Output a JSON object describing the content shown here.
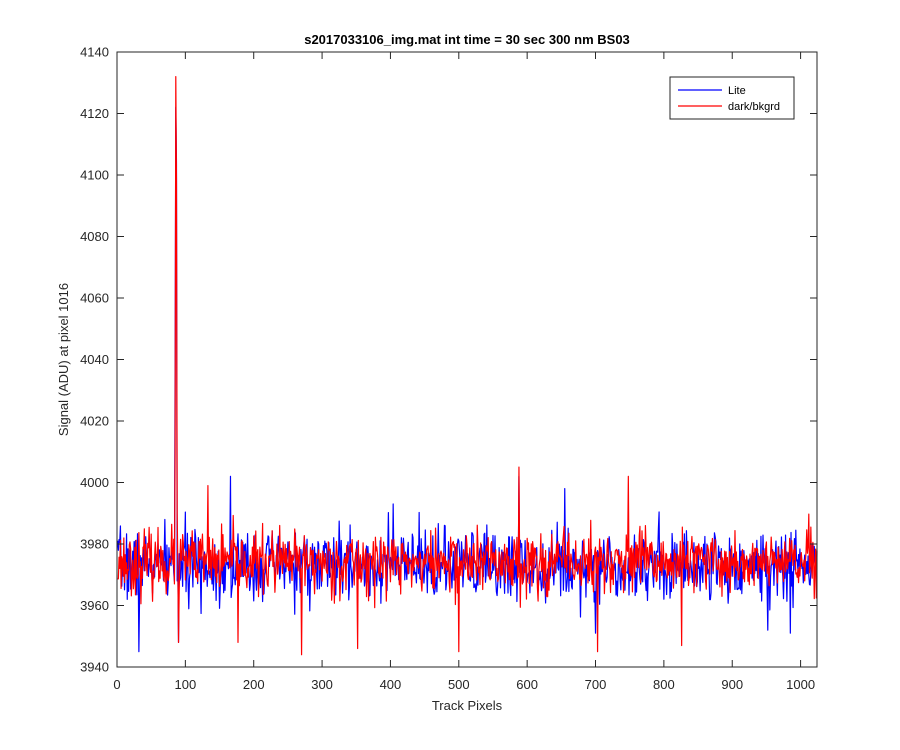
{
  "chart_data": {
    "type": "line",
    "title": "s2017033106_img.mat int time = 30 sec  300 nm BS03",
    "xlabel": "Track Pixels",
    "ylabel": "Signal (ADU) at pixel 1016",
    "xlim": [
      0,
      1024
    ],
    "ylim": [
      3940,
      4140
    ],
    "x_ticks": [
      0,
      100,
      200,
      300,
      400,
      500,
      600,
      700,
      800,
      900,
      1000
    ],
    "y_ticks": [
      3940,
      3960,
      3980,
      4000,
      4020,
      4040,
      4060,
      4080,
      4100,
      4120,
      4140
    ],
    "grid": false,
    "legend_position": "top-right",
    "series": [
      {
        "name": "Lite",
        "color": "#0000ff",
        "x_start": 1,
        "x_end": 1024,
        "baseline": 3973,
        "noise_amplitude": 9,
        "seed": 7,
        "spikes": [
          {
            "x": 32,
            "y": 3945
          },
          {
            "x": 85,
            "y": 4037
          },
          {
            "x": 86,
            "y": 4122
          },
          {
            "x": 87,
            "y": 4104
          },
          {
            "x": 90,
            "y": 3948
          },
          {
            "x": 166,
            "y": 4002
          },
          {
            "x": 404,
            "y": 3993
          },
          {
            "x": 588,
            "y": 4002
          },
          {
            "x": 655,
            "y": 3998
          },
          {
            "x": 700,
            "y": 3951
          },
          {
            "x": 952,
            "y": 3952
          },
          {
            "x": 985,
            "y": 3951
          }
        ]
      },
      {
        "name": "dark/bkgrd",
        "color": "#ff0000",
        "x_start": 1,
        "x_end": 1024,
        "baseline": 3974,
        "noise_amplitude": 8,
        "seed": 23,
        "spikes": [
          {
            "x": 85,
            "y": 4010
          },
          {
            "x": 86,
            "y": 4132
          },
          {
            "x": 87,
            "y": 4098
          },
          {
            "x": 88,
            "y": 3990
          },
          {
            "x": 90,
            "y": 3948
          },
          {
            "x": 133,
            "y": 3999
          },
          {
            "x": 177,
            "y": 3948
          },
          {
            "x": 270,
            "y": 3944
          },
          {
            "x": 352,
            "y": 3946
          },
          {
            "x": 500,
            "y": 3945
          },
          {
            "x": 588,
            "y": 4005
          },
          {
            "x": 703,
            "y": 3945
          },
          {
            "x": 748,
            "y": 4002
          },
          {
            "x": 826,
            "y": 3947
          }
        ]
      }
    ]
  },
  "colors": {
    "axes": "#262626",
    "background": "#ffffff"
  }
}
